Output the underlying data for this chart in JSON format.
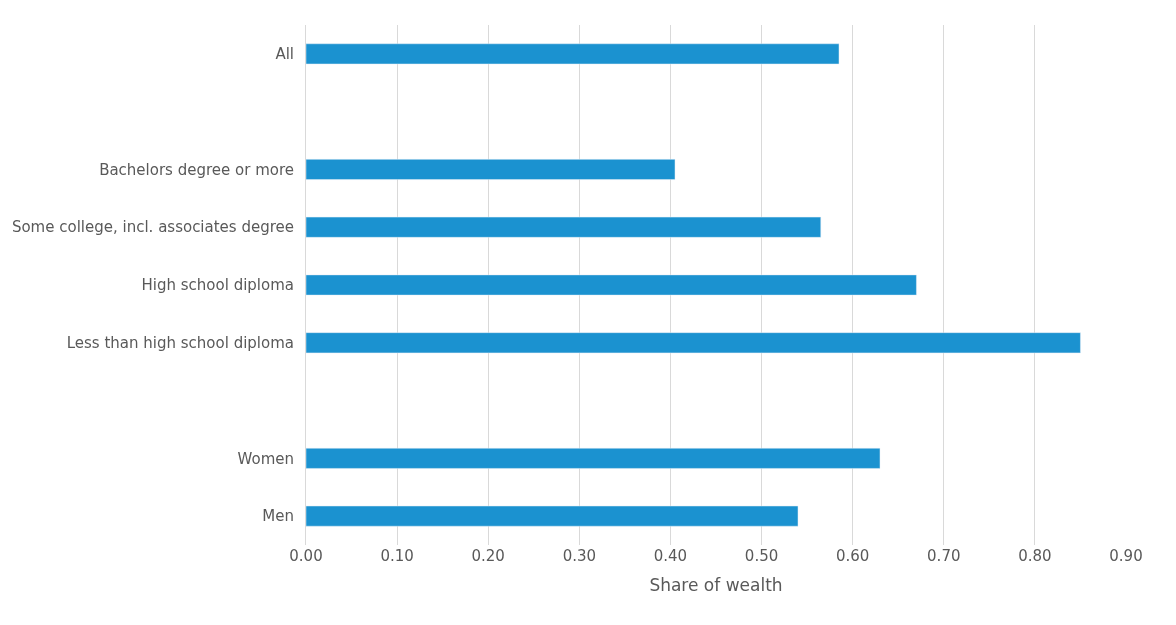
{
  "chart_data": {
    "type": "bar",
    "orientation": "horizontal",
    "xlabel": "Share of wealth",
    "categories": [
      "All",
      null,
      "Bachelors degree or more",
      "Some college, incl. associates degree",
      "High school diploma",
      "Less than high school diploma",
      null,
      "Women",
      "Men"
    ],
    "values": [
      0.585,
      null,
      0.405,
      0.565,
      0.67,
      0.85,
      null,
      0.63,
      0.54
    ],
    "color": "#1b92d0",
    "xlim": [
      0,
      0.9
    ],
    "xticks": [
      {
        "value": 0,
        "label": "0.00"
      },
      {
        "value": 0.1,
        "label": "0.10"
      },
      {
        "value": 0.2,
        "label": "0.20"
      },
      {
        "value": 0.3,
        "label": "0.30"
      },
      {
        "value": 0.4,
        "label": "0.40"
      },
      {
        "value": 0.5,
        "label": "0.50"
      },
      {
        "value": 0.6,
        "label": "0.60"
      },
      {
        "value": 0.7,
        "label": "0.70"
      },
      {
        "value": 0.8,
        "label": "0.80"
      },
      {
        "value": 0.9,
        "label": "0.90"
      }
    ],
    "grid": "x"
  }
}
